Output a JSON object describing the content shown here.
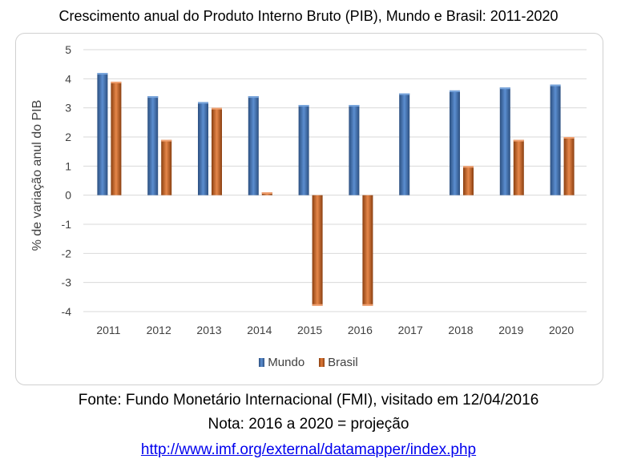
{
  "title": "Crescimento anual do Produto Interno Bruto (PIB), Mundo e Brasil: 2011-2020",
  "footer": {
    "source": "Fonte: Fundo Monetário Internacional (FMI), visitado em 12/04/2016",
    "note": "Nota: 2016 a 2020 = projeção",
    "url": "http://www.imf.org/external/datamapper/index.php"
  },
  "chart_data": {
    "type": "bar",
    "title": "Crescimento anual do Produto Interno Bruto (PIB), Mundo e Brasil: 2011-2020",
    "xlabel": "",
    "ylabel": "% de variação anul do PIB",
    "ylim": [
      -4,
      5
    ],
    "yticks": [
      5,
      4,
      3,
      2,
      1,
      0,
      -1,
      -2,
      -3,
      -4
    ],
    "grid": true,
    "legend": "bottom",
    "categories": [
      "2011",
      "2012",
      "2013",
      "2014",
      "2015",
      "2016",
      "2017",
      "2018",
      "2019",
      "2020"
    ],
    "series": [
      {
        "name": "Mundo",
        "color": "#4a7ebb",
        "values": [
          4.2,
          3.4,
          3.2,
          3.4,
          3.1,
          3.1,
          3.5,
          3.6,
          3.7,
          3.8
        ]
      },
      {
        "name": "Brasil",
        "color": "#e07a38",
        "values": [
          3.9,
          1.9,
          3.0,
          0.1,
          -3.8,
          -3.8,
          0.0,
          1.0,
          1.9,
          2.0
        ]
      }
    ]
  }
}
